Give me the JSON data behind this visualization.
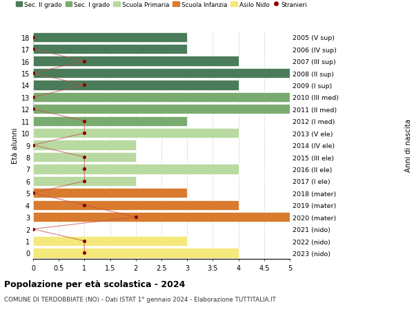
{
  "ages": [
    18,
    17,
    16,
    15,
    14,
    13,
    12,
    11,
    10,
    9,
    8,
    7,
    6,
    5,
    4,
    3,
    2,
    1,
    0
  ],
  "years": [
    "2005 (V sup)",
    "2006 (IV sup)",
    "2007 (III sup)",
    "2008 (II sup)",
    "2009 (I sup)",
    "2010 (III med)",
    "2011 (II med)",
    "2012 (I med)",
    "2013 (V ele)",
    "2014 (IV ele)",
    "2015 (III ele)",
    "2016 (II ele)",
    "2017 (I ele)",
    "2018 (mater)",
    "2019 (mater)",
    "2020 (mater)",
    "2021 (nido)",
    "2022 (nido)",
    "2023 (nido)"
  ],
  "bar_values": [
    3,
    3,
    4,
    5,
    4,
    5,
    5,
    3,
    4,
    2,
    2,
    4,
    2,
    3,
    4,
    5,
    0,
    3,
    4
  ],
  "bar_colors": [
    "#4a7c59",
    "#4a7c59",
    "#4a7c59",
    "#4a7c59",
    "#4a7c59",
    "#7aab6e",
    "#7aab6e",
    "#7aab6e",
    "#b8d9a0",
    "#b8d9a0",
    "#b8d9a0",
    "#b8d9a0",
    "#b8d9a0",
    "#d97b2e",
    "#d97b2e",
    "#d97b2e",
    "#f5e87a",
    "#f5e87a",
    "#f5e87a"
  ],
  "stranieri_values": [
    0,
    0,
    1,
    0,
    1,
    0,
    0,
    1,
    1,
    0,
    1,
    1,
    1,
    0,
    1,
    2,
    0,
    1,
    1
  ],
  "stranieri_color": "#8b0000",
  "legend_labels": [
    "Sec. II grado",
    "Sec. I grado",
    "Scuola Primaria",
    "Scuola Infanzia",
    "Asilo Nido",
    "Stranieri"
  ],
  "legend_colors": [
    "#4a7c59",
    "#7aab6e",
    "#b8d9a0",
    "#d97b2e",
    "#f5e87a",
    "#8b0000"
  ],
  "title": "Popolazione per età scolastica - 2024",
  "subtitle": "COMUNE DI TERDOBBIATE (NO) - Dati ISTAT 1° gennaio 2024 - Elaborazione TUTTITALIA.IT",
  "ylabel_left": "Età alunni",
  "ylabel_right": "Anni di nascita",
  "xlim": [
    0,
    5.0
  ],
  "xticks": [
    0,
    0.5,
    1.0,
    1.5,
    2.0,
    2.5,
    3.0,
    3.5,
    4.0,
    4.5,
    5.0
  ],
  "bar_height": 0.82,
  "bg_color": "#ffffff",
  "grid_color": "#cccccc",
  "line_color": "#c0504d",
  "line_alpha": 0.65
}
